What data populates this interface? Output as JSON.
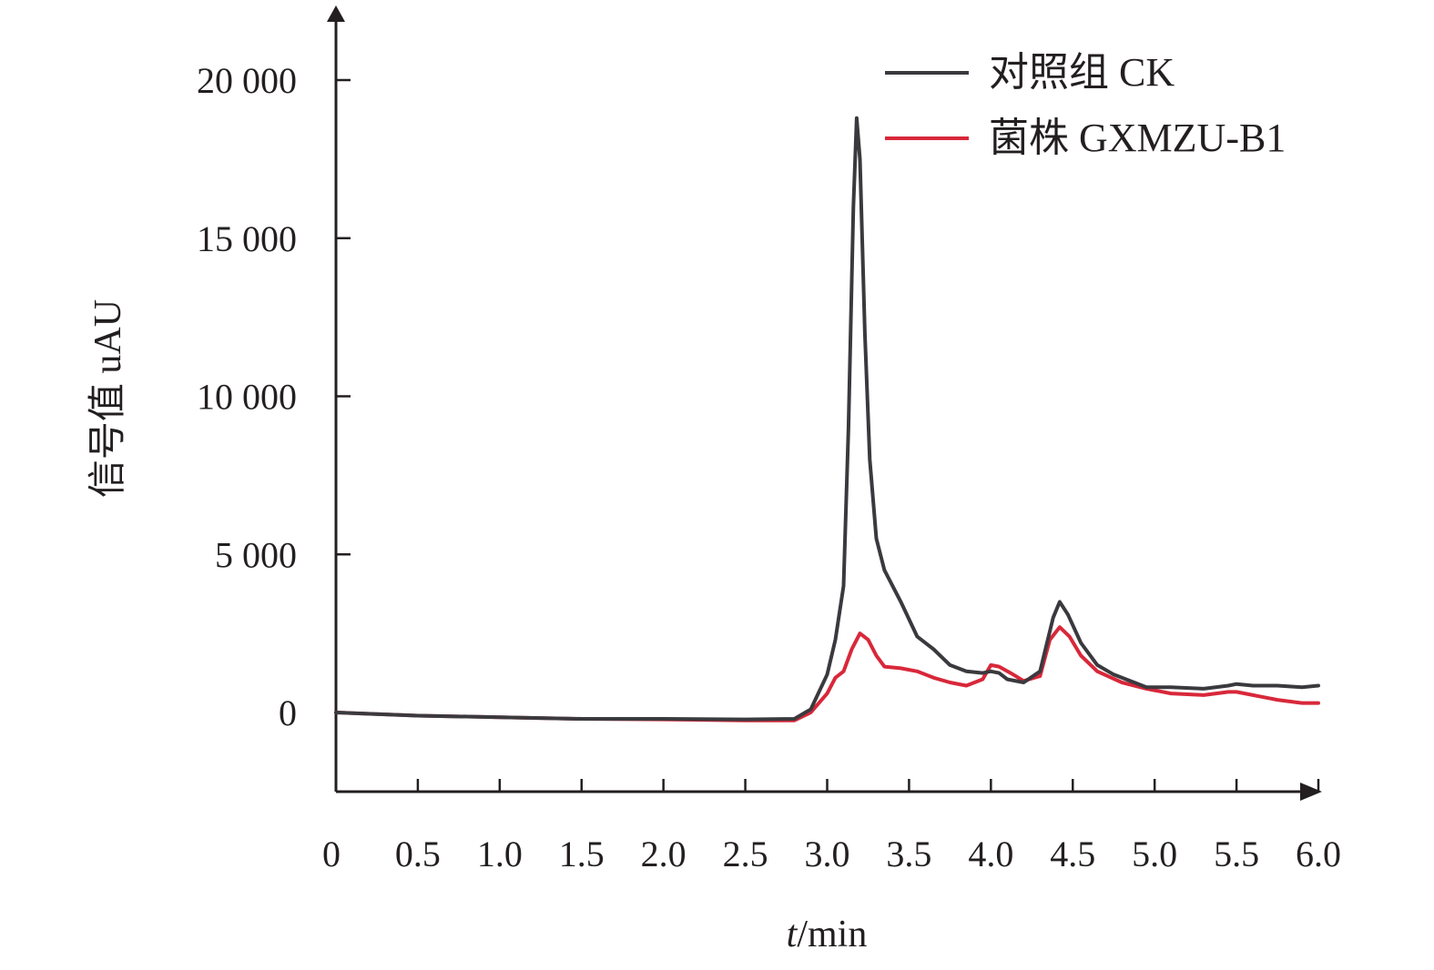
{
  "chart_data": {
    "type": "line",
    "title": "",
    "xlabel_italic": "t",
    "xlabel_rest": "/min",
    "ylabel": "信号值 uAU",
    "xlim": [
      0,
      6.0
    ],
    "ylim": [
      -2500,
      22000
    ],
    "x_ticks": [
      0,
      0.5,
      1.0,
      1.5,
      2.0,
      2.5,
      3.0,
      3.5,
      4.0,
      4.5,
      5.0,
      5.5,
      6.0
    ],
    "x_tick_labels": [
      "0",
      "0.5",
      "1.0",
      "1.5",
      "2.0",
      "2.5",
      "3.0",
      "3.5",
      "4.0",
      "4.5",
      "5.0",
      "5.5",
      "6.0"
    ],
    "y_ticks": [
      0,
      5000,
      10000,
      15000,
      20000
    ],
    "y_tick_labels": [
      "0",
      "5 000",
      "10 000",
      "15 000",
      "20 000"
    ],
    "grid": false,
    "legend_position": "top-right",
    "series": [
      {
        "name": "对照组 CK",
        "color": "#3a3a3e",
        "points": [
          [
            0,
            0
          ],
          [
            0.5,
            -100
          ],
          [
            1.0,
            -150
          ],
          [
            1.5,
            -200
          ],
          [
            2.0,
            -200
          ],
          [
            2.5,
            -220
          ],
          [
            2.8,
            -200
          ],
          [
            2.9,
            100
          ],
          [
            3.0,
            1200
          ],
          [
            3.05,
            2300
          ],
          [
            3.1,
            4000
          ],
          [
            3.13,
            9000
          ],
          [
            3.16,
            16000
          ],
          [
            3.18,
            18800
          ],
          [
            3.2,
            17500
          ],
          [
            3.23,
            12000
          ],
          [
            3.26,
            8000
          ],
          [
            3.3,
            5500
          ],
          [
            3.35,
            4500
          ],
          [
            3.45,
            3500
          ],
          [
            3.55,
            2400
          ],
          [
            3.65,
            2000
          ],
          [
            3.75,
            1500
          ],
          [
            3.85,
            1300
          ],
          [
            3.95,
            1250
          ],
          [
            4.0,
            1300
          ],
          [
            4.05,
            1250
          ],
          [
            4.1,
            1050
          ],
          [
            4.2,
            950
          ],
          [
            4.3,
            1300
          ],
          [
            4.38,
            3000
          ],
          [
            4.42,
            3500
          ],
          [
            4.47,
            3100
          ],
          [
            4.55,
            2200
          ],
          [
            4.65,
            1500
          ],
          [
            4.75,
            1200
          ],
          [
            4.85,
            1000
          ],
          [
            4.95,
            800
          ],
          [
            5.1,
            800
          ],
          [
            5.3,
            750
          ],
          [
            5.45,
            850
          ],
          [
            5.5,
            900
          ],
          [
            5.6,
            850
          ],
          [
            5.75,
            850
          ],
          [
            5.9,
            800
          ],
          [
            6.0,
            850
          ]
        ]
      },
      {
        "name": "菌株 GXMZU-B1",
        "color": "#d8283a",
        "points": [
          [
            0,
            0
          ],
          [
            0.5,
            -100
          ],
          [
            1.0,
            -150
          ],
          [
            1.5,
            -200
          ],
          [
            2.0,
            -220
          ],
          [
            2.5,
            -250
          ],
          [
            2.8,
            -250
          ],
          [
            2.9,
            0
          ],
          [
            3.0,
            600
          ],
          [
            3.05,
            1100
          ],
          [
            3.1,
            1300
          ],
          [
            3.15,
            2000
          ],
          [
            3.2,
            2500
          ],
          [
            3.25,
            2300
          ],
          [
            3.3,
            1800
          ],
          [
            3.35,
            1450
          ],
          [
            3.45,
            1400
          ],
          [
            3.55,
            1300
          ],
          [
            3.65,
            1100
          ],
          [
            3.75,
            950
          ],
          [
            3.85,
            850
          ],
          [
            3.95,
            1050
          ],
          [
            4.0,
            1500
          ],
          [
            4.05,
            1450
          ],
          [
            4.12,
            1250
          ],
          [
            4.2,
            1000
          ],
          [
            4.3,
            1150
          ],
          [
            4.36,
            2300
          ],
          [
            4.42,
            2700
          ],
          [
            4.48,
            2400
          ],
          [
            4.55,
            1800
          ],
          [
            4.65,
            1300
          ],
          [
            4.8,
            950
          ],
          [
            4.95,
            750
          ],
          [
            5.1,
            600
          ],
          [
            5.3,
            550
          ],
          [
            5.45,
            650
          ],
          [
            5.5,
            650
          ],
          [
            5.6,
            550
          ],
          [
            5.75,
            400
          ],
          [
            5.9,
            300
          ],
          [
            6.0,
            300
          ]
        ]
      }
    ]
  }
}
